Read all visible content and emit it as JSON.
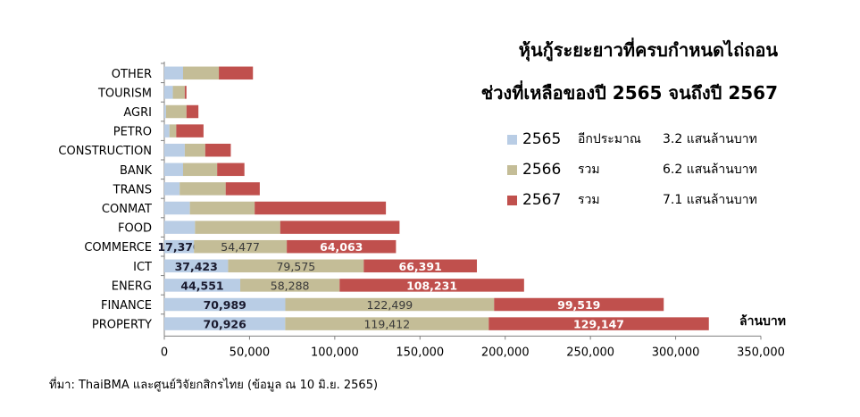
{
  "chart_data": {
    "type": "bar",
    "orientation": "horizontal",
    "stacked": true,
    "title_lines": [
      "หุ้นกู้ระยะยาวที่ครบกำหนดไถ่ถอน",
      "ช่วงที่เหลือของปี 2565 จนถึงปี 2567"
    ],
    "unit": "ล้านบาท",
    "categories": [
      "OTHER",
      "TOURISM",
      "AGRI",
      "PETRO",
      "CONSTRUCTION",
      "BANK",
      "TRANS",
      "CONMAT",
      "FOOD",
      "COMMERCE",
      "ICT",
      "ENERG",
      "FINANCE",
      "PROPERTY"
    ],
    "series": [
      {
        "name": "2565",
        "color": "#b9cde5",
        "values": [
          11000,
          5000,
          1000,
          3000,
          12000,
          11000,
          9000,
          15000,
          18000,
          17370,
          37423,
          44551,
          70989,
          70926
        ]
      },
      {
        "name": "2566",
        "color": "#c4bd97",
        "values": [
          21000,
          7000,
          12000,
          4000,
          12000,
          20000,
          27000,
          38000,
          50000,
          54477,
          79575,
          58288,
          122499,
          119412
        ]
      },
      {
        "name": "2567",
        "color": "#c0504d",
        "values": [
          20000,
          1000,
          7000,
          16000,
          15000,
          16000,
          20000,
          77000,
          70000,
          64063,
          66391,
          108231,
          99519,
          129147
        ]
      }
    ],
    "data_labels": {
      "COMMERCE": [
        "17,370",
        "54,477",
        "64,063"
      ],
      "ICT": [
        "37,423",
        "79,575",
        "66,391"
      ],
      "ENERG": [
        "44,551",
        "58,288",
        "108,231"
      ],
      "FINANCE": [
        "70,989",
        "122,499",
        "99,519"
      ],
      "PROPERTY": [
        "70,926",
        "119,412",
        "129,147"
      ]
    },
    "xlim": [
      0,
      350000
    ],
    "x_ticks": [
      "0",
      "50,000",
      "100,000",
      "150,000",
      "200,000",
      "250,000",
      "300,000",
      "350,000"
    ],
    "grid": false,
    "legend": [
      {
        "year": "2565",
        "word": "อีกประมาณ",
        "amount": "3.2 แสนล้านบาท"
      },
      {
        "year": "2566",
        "word": "รวม",
        "amount": "6.2 แสนล้านบาท"
      },
      {
        "year": "2567",
        "word": "รวม",
        "amount": "7.1 แสนล้านบาท"
      }
    ],
    "source": "ที่มา: ThaiBMA และศูนย์วิจัยกสิกรไทย (ข้อมูล ณ 10 มิ.ย. 2565)"
  }
}
